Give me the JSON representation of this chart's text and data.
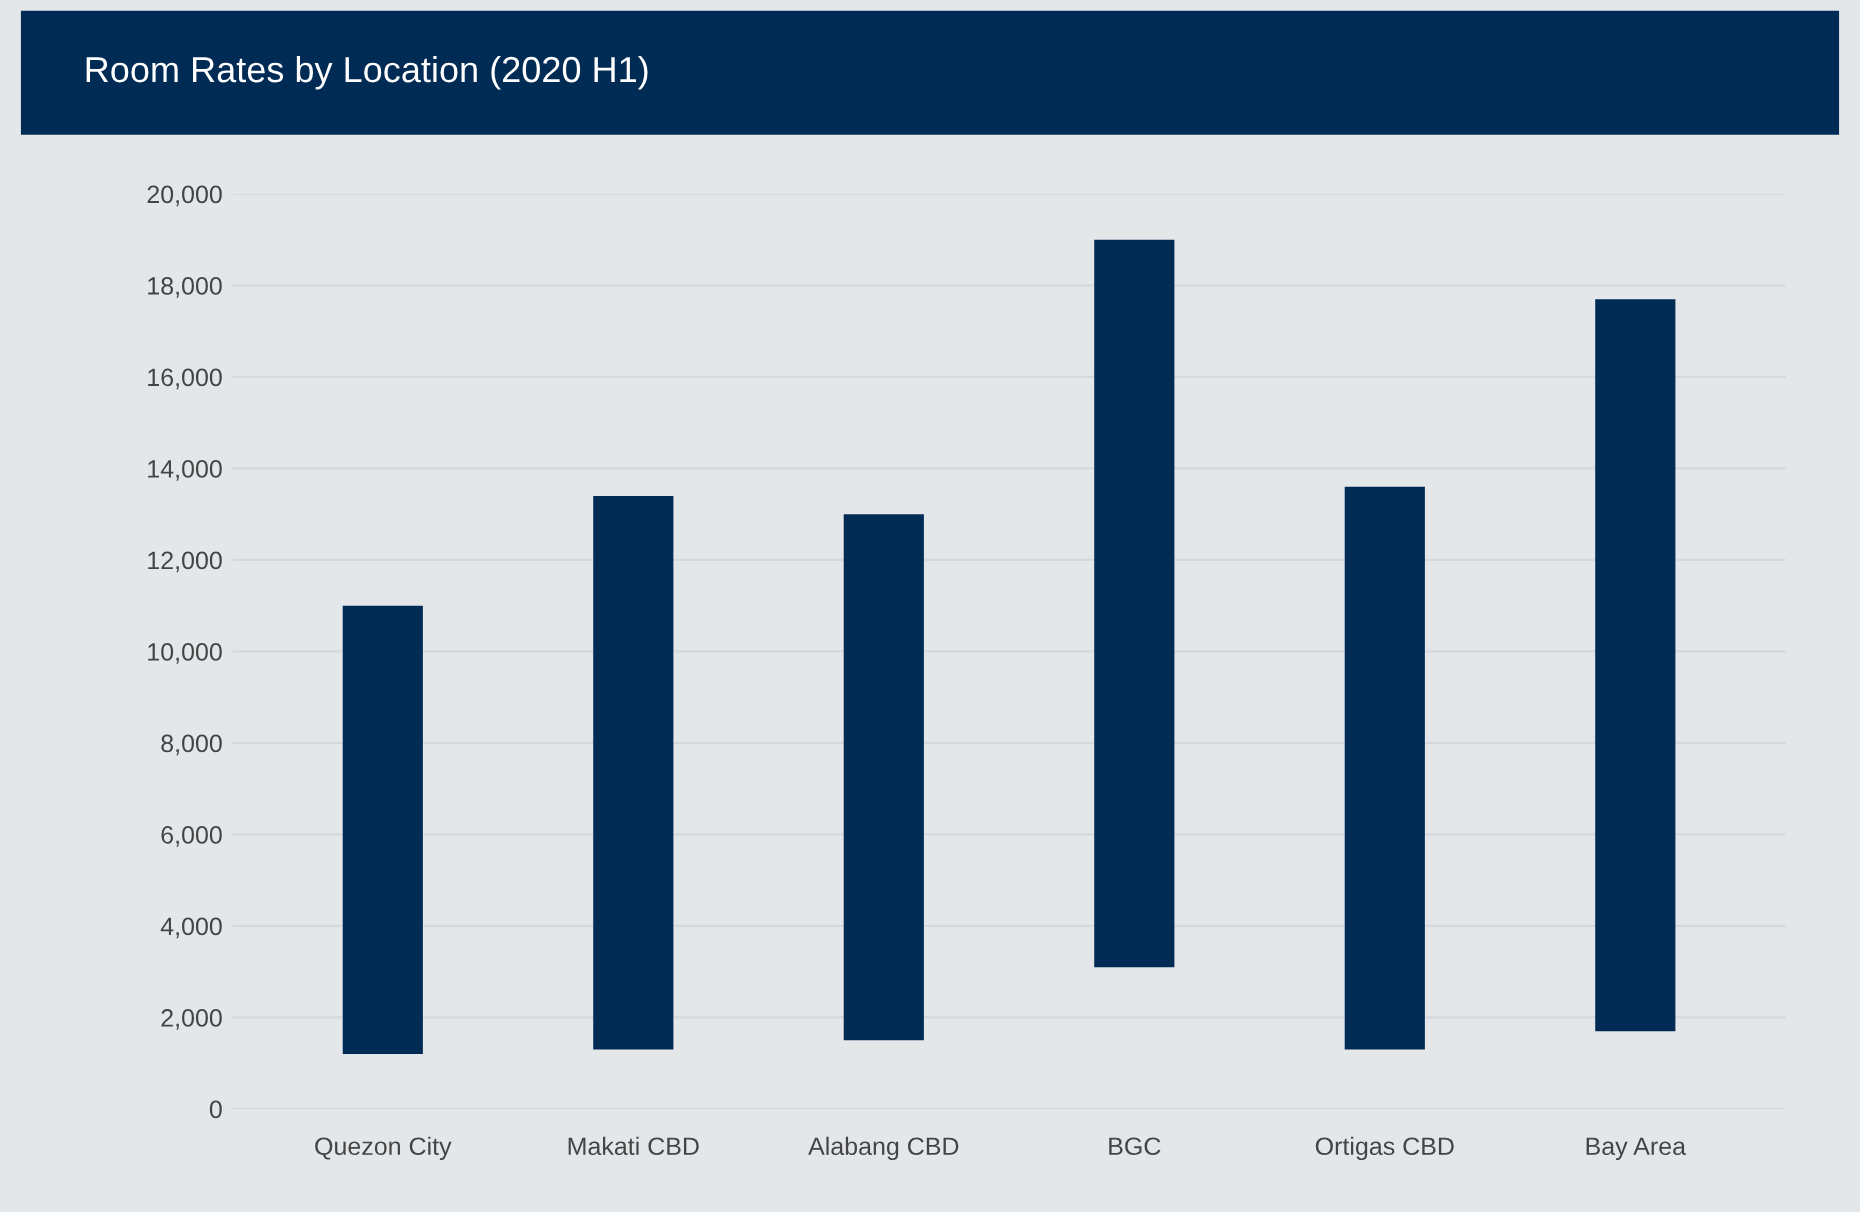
{
  "chart_data": {
    "type": "bar",
    "title": "Room Rates by Location (2020 H1)",
    "categories": [
      "Quezon City",
      "Makati CBD",
      "Alabang CBD",
      "BGC",
      "Ortigas CBD",
      "Bay Area"
    ],
    "base": [
      1200,
      1300,
      1500,
      3100,
      1300,
      1700
    ],
    "values": [
      9800,
      12100,
      11500,
      15900,
      12300,
      16000
    ],
    "color": "#002b55",
    "ylim": [
      0,
      20000
    ],
    "yticks": [
      {
        "value": 0,
        "label": "0"
      },
      {
        "value": 2000,
        "label": "2,000"
      },
      {
        "value": 4000,
        "label": "4,000"
      },
      {
        "value": 6000,
        "label": "6,000"
      },
      {
        "value": 8000,
        "label": "8,000"
      },
      {
        "value": 10000,
        "label": "10,000"
      },
      {
        "value": 12000,
        "label": "12,000"
      },
      {
        "value": 14000,
        "label": "14,000"
      },
      {
        "value": 16000,
        "label": "16,000"
      },
      {
        "value": 18000,
        "label": "18,000"
      },
      {
        "value": 20000,
        "label": "20,000"
      }
    ],
    "grid": "y",
    "legend": false
  }
}
